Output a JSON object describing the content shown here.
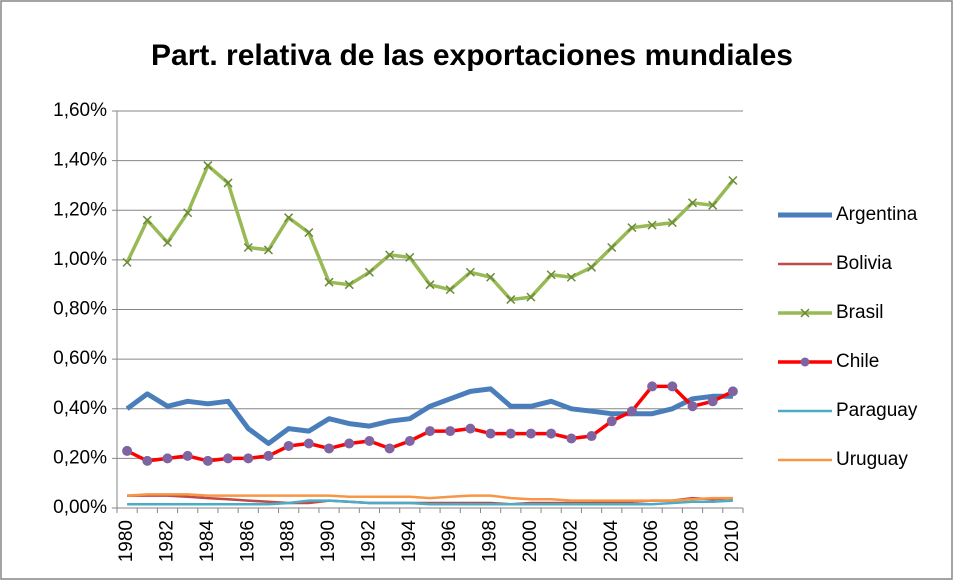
{
  "chart_data": {
    "type": "line",
    "title": "Part. relativa de las exportaciones mundiales",
    "categories": [
      "1980",
      null,
      "1982",
      null,
      "1984",
      null,
      "1986",
      null,
      "1988",
      null,
      "1990",
      null,
      "1992",
      null,
      "1994",
      null,
      "1996",
      null,
      "1998",
      null,
      "2000",
      null,
      "2002",
      null,
      "2004",
      null,
      "2006",
      null,
      "2008",
      null,
      "2010"
    ],
    "ylim": [
      0,
      1.6
    ],
    "yticks": [
      {
        "value": 0,
        "label": "0,00%"
      },
      {
        "value": 0.2,
        "label": "0,20%"
      },
      {
        "value": 0.4,
        "label": "0,40%"
      },
      {
        "value": 0.6,
        "label": "0,60%"
      },
      {
        "value": 0.8,
        "label": "0,80%"
      },
      {
        "value": 1.0,
        "label": "1,00%"
      },
      {
        "value": 1.2,
        "label": "1,20%"
      },
      {
        "value": 1.4,
        "label": "1,40%"
      },
      {
        "value": 1.6,
        "label": "1,60%"
      }
    ],
    "grid": true,
    "legend": "right",
    "series": [
      {
        "name": "Argentina",
        "color": "#4a7ebb",
        "width": 5,
        "values": [
          0.4,
          0.46,
          0.41,
          0.43,
          0.42,
          0.43,
          0.32,
          0.26,
          0.32,
          0.31,
          0.36,
          0.34,
          0.33,
          0.35,
          0.36,
          0.41,
          0.44,
          0.47,
          0.48,
          0.41,
          0.41,
          0.43,
          0.4,
          0.39,
          0.38,
          0.38,
          0.38,
          0.4,
          0.44,
          0.45,
          0.45
        ]
      },
      {
        "name": "Bolivia",
        "color": "#be4b48",
        "width": 2.5,
        "values": [
          0.05,
          0.05,
          0.05,
          0.045,
          0.04,
          0.035,
          0.03,
          0.025,
          0.02,
          0.02,
          0.03,
          0.025,
          0.02,
          0.02,
          0.02,
          0.02,
          0.02,
          0.02,
          0.02,
          0.015,
          0.02,
          0.02,
          0.02,
          0.02,
          0.025,
          0.025,
          0.03,
          0.03,
          0.04,
          0.035,
          0.04
        ]
      },
      {
        "name": "Brasil",
        "color": "#98b954",
        "width": 3.5,
        "marker": "x",
        "values": [
          0.99,
          1.16,
          1.07,
          1.19,
          1.38,
          1.31,
          1.05,
          1.04,
          1.17,
          1.11,
          0.91,
          0.9,
          0.95,
          1.02,
          1.01,
          0.9,
          0.88,
          0.95,
          0.93,
          0.84,
          0.85,
          0.94,
          0.93,
          0.97,
          1.05,
          1.13,
          1.14,
          1.15,
          1.23,
          1.22,
          1.32
        ]
      },
      {
        "name": "Chile",
        "color": "#ff0000",
        "width": 3.5,
        "marker": "circle",
        "marker_color": "#8064a2",
        "values": [
          0.23,
          0.19,
          0.2,
          0.21,
          0.19,
          0.2,
          0.2,
          0.21,
          0.25,
          0.26,
          0.24,
          0.26,
          0.27,
          0.24,
          0.27,
          0.31,
          0.31,
          0.32,
          0.3,
          0.3,
          0.3,
          0.3,
          0.28,
          0.29,
          0.35,
          0.39,
          0.49,
          0.49,
          0.41,
          0.43,
          0.47
        ]
      },
      {
        "name": "Paraguay",
        "color": "#4bacc6",
        "width": 2.5,
        "values": [
          0.015,
          0.015,
          0.015,
          0.015,
          0.015,
          0.015,
          0.015,
          0.015,
          0.02,
          0.03,
          0.03,
          0.025,
          0.02,
          0.02,
          0.02,
          0.015,
          0.015,
          0.015,
          0.015,
          0.015,
          0.015,
          0.015,
          0.015,
          0.015,
          0.015,
          0.015,
          0.015,
          0.02,
          0.025,
          0.025,
          0.03
        ]
      },
      {
        "name": "Uruguay",
        "color": "#f79646",
        "width": 2.5,
        "values": [
          0.05,
          0.055,
          0.055,
          0.055,
          0.05,
          0.05,
          0.05,
          0.05,
          0.05,
          0.05,
          0.05,
          0.045,
          0.045,
          0.045,
          0.045,
          0.04,
          0.045,
          0.05,
          0.05,
          0.04,
          0.035,
          0.035,
          0.03,
          0.03,
          0.03,
          0.03,
          0.03,
          0.03,
          0.035,
          0.04,
          0.04
        ]
      }
    ]
  }
}
